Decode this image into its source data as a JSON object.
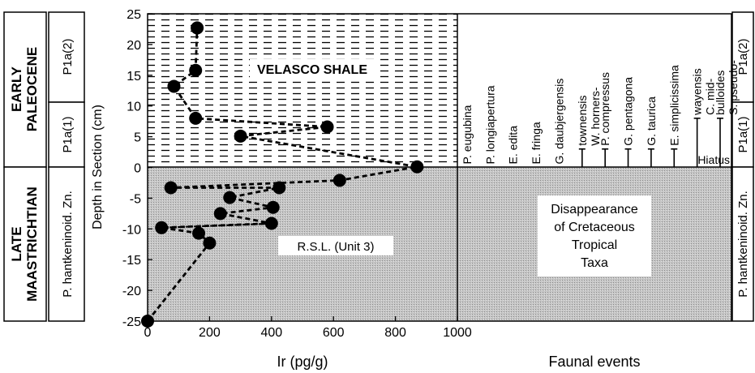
{
  "chart_data": {
    "type": "scatter",
    "xlabel": "Ir (pg/g)",
    "ylabel": "Depth in Section (cm)",
    "xlim": [
      0,
      1000
    ],
    "ylim": [
      -25,
      25
    ],
    "x_ticks": [
      "0",
      "200",
      "400",
      "600",
      "800",
      "1000"
    ],
    "y_ticks": [
      "25",
      "20",
      "15",
      "10",
      "5",
      "0",
      "-5",
      "-10",
      "-15",
      "-20",
      "-25"
    ],
    "points": [
      {
        "x": 0,
        "y": -25
      },
      {
        "x": 200,
        "y": -12.3
      },
      {
        "x": 165,
        "y": -10.7
      },
      {
        "x": 45,
        "y": -9.8
      },
      {
        "x": 400,
        "y": -9.1
      },
      {
        "x": 235,
        "y": -7.5
      },
      {
        "x": 405,
        "y": -6.5
      },
      {
        "x": 265,
        "y": -4.9
      },
      {
        "x": 425,
        "y": -3.3
      },
      {
        "x": 75,
        "y": -3.3
      },
      {
        "x": 620,
        "y": -2.1
      },
      {
        "x": 870,
        "y": 0.1
      },
      {
        "x": 300,
        "y": 5.1
      },
      {
        "x": 580,
        "y": 6.6
      },
      {
        "x": 155,
        "y": 8.0
      },
      {
        "x": 85,
        "y": 13.2
      },
      {
        "x": 155,
        "y": 15.8
      },
      {
        "x": 160,
        "y": 22.7
      }
    ],
    "line_order": [
      0,
      1,
      2,
      3,
      4,
      5,
      6,
      7,
      8,
      9,
      10,
      11,
      12,
      13,
      14,
      15,
      16,
      17
    ],
    "extra_segments": [
      {
        "from": 3,
        "to": 4,
        "x2": 420
      },
      {
        "from": 0,
        "to": 1
      }
    ]
  },
  "labels": {
    "upper_unit": "VELASCO SHALE",
    "lower_unit": "R.S.L. (Unit 3)",
    "faunal_axis": "Faunal events",
    "hiatus": "Hiatus",
    "disappearance": [
      "Disappearance",
      "of Cretaceous",
      "Tropical",
      "Taxa"
    ]
  },
  "stages": {
    "early": [
      "EARLY",
      "PALEOCENE"
    ],
    "late": [
      "LATE",
      "MAASTRICHTIAN"
    ]
  },
  "zones": {
    "p1a2": "P1a(2)",
    "p1a1": "P1a(1)",
    "hant": "P. hantkeninoid. Zn."
  },
  "taxa": [
    {
      "lines": [
        "P. eugubina"
      ],
      "top": 0
    },
    {
      "lines": [
        "P. longiapertura"
      ],
      "top": 0
    },
    {
      "lines": [
        "E. edita"
      ],
      "top": 0
    },
    {
      "lines": [
        "E. fringa"
      ],
      "top": 0
    },
    {
      "lines": [
        "G. daubjergensis"
      ],
      "top": 0
    },
    {
      "lines": [
        "W. hornerstownensis"
      ],
      "top": 3
    },
    {
      "lines": [
        "P. compressus"
      ],
      "top": 3
    },
    {
      "lines": [
        "G. pentagona"
      ],
      "top": 3
    },
    {
      "lines": [
        "G. taurica"
      ],
      "top": 3
    },
    {
      "lines": [
        "E. simplicissima"
      ],
      "top": 3
    },
    {
      "lines": [
        "C. midwayensis"
      ],
      "top": 8
    },
    {
      "lines": [
        "S. pseudobulloides"
      ],
      "top": 8
    }
  ],
  "taxa_display": [
    [
      "P. eugubina"
    ],
    [
      "P. longiapertura"
    ],
    [
      "E. edita"
    ],
    [
      "E. fringa"
    ],
    [
      "G. daubjergensis"
    ],
    [
      "W. horners-",
      "townensis"
    ],
    [
      "P. compressus"
    ],
    [
      "G. pentagona"
    ],
    [
      "G. taurica"
    ],
    [
      "E. simplicissima"
    ],
    [
      "C. mid-",
      "wayensis"
    ],
    [
      "S. pseudo-",
      "bulloides"
    ]
  ]
}
